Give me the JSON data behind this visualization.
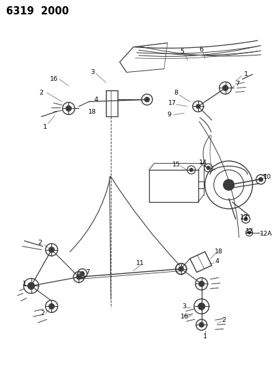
{
  "title": "6319  2000",
  "bg_color": "#ffffff",
  "fig_width": 4.08,
  "fig_height": 5.33,
  "dpi": 100,
  "line_color": "#3a3a3a",
  "title_fontsize": 10.5,
  "label_fontsize": 6.8
}
